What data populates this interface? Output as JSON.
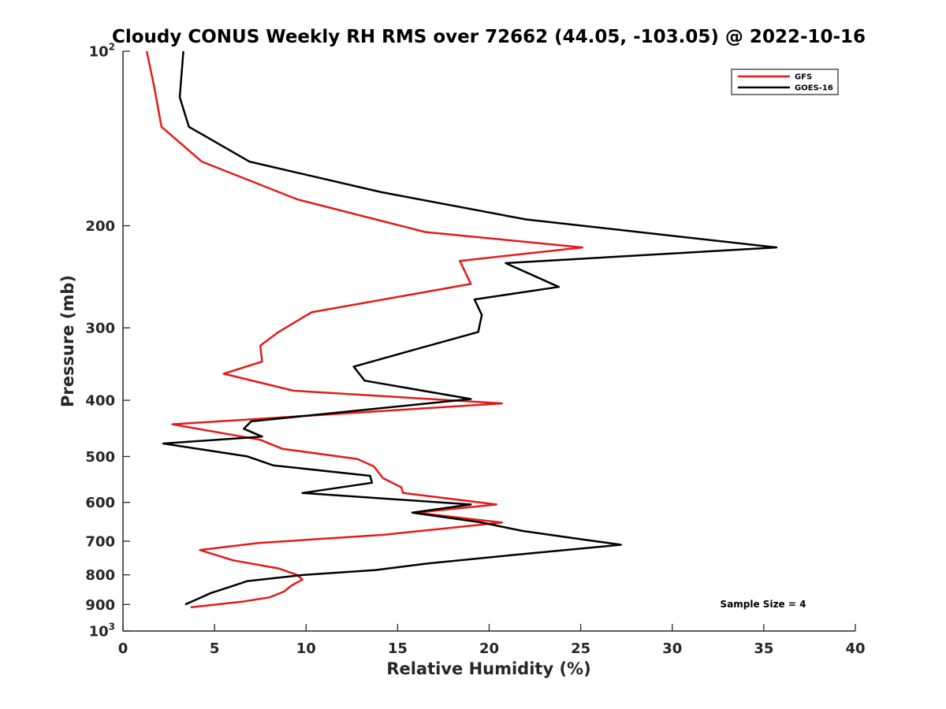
{
  "chart_data": {
    "type": "line",
    "title": "Cloudy CONUS Weekly RH RMS over 72662 (44.05, -103.05) @ 2022-10-16",
    "xlabel": "Relative Humidity (%)",
    "ylabel": "Pressure (mb)",
    "xlim": [
      0,
      40
    ],
    "ylim": [
      100,
      1000
    ],
    "y_scale": "log",
    "y_reversed": true,
    "x_ticks": [
      0,
      5,
      10,
      15,
      20,
      25,
      30,
      35,
      40
    ],
    "y_ticks": [
      {
        "value": 100,
        "base": "10",
        "exp": "2"
      },
      {
        "value": 200,
        "label": "200"
      },
      {
        "value": 300,
        "label": "300"
      },
      {
        "value": 400,
        "label": "400"
      },
      {
        "value": 500,
        "label": "500"
      },
      {
        "value": 600,
        "label": "600"
      },
      {
        "value": 700,
        "label": "700"
      },
      {
        "value": 800,
        "label": "800"
      },
      {
        "value": 900,
        "label": "900"
      },
      {
        "value": 1000,
        "base": "10",
        "exp": "3"
      }
    ],
    "grid": false,
    "legend_position": "top-right",
    "annotation": "Sample Size = 4",
    "series": [
      {
        "name": "GFS",
        "color": "#e41a1a",
        "points": [
          [
            1.3,
            100
          ],
          [
            1.7,
            115
          ],
          [
            2.1,
            135
          ],
          [
            4.3,
            155
          ],
          [
            9.5,
            180
          ],
          [
            16.5,
            205
          ],
          [
            25.1,
            218
          ],
          [
            18.4,
            230
          ],
          [
            19.0,
            252
          ],
          [
            10.3,
            282
          ],
          [
            8.5,
            305
          ],
          [
            7.5,
            322
          ],
          [
            7.6,
            343
          ],
          [
            5.5,
            360
          ],
          [
            9.3,
            385
          ],
          [
            20.7,
            405
          ],
          [
            2.7,
            440
          ],
          [
            7.5,
            468
          ],
          [
            8.7,
            485
          ],
          [
            12.8,
            505
          ],
          [
            13.7,
            520
          ],
          [
            14.2,
            545
          ],
          [
            15.2,
            565
          ],
          [
            15.3,
            578
          ],
          [
            20.4,
            605
          ],
          [
            16.0,
            625
          ],
          [
            20.7,
            650
          ],
          [
            14.3,
            682
          ],
          [
            7.4,
            705
          ],
          [
            4.2,
            725
          ],
          [
            6.0,
            755
          ],
          [
            8.5,
            780
          ],
          [
            9.5,
            800
          ],
          [
            9.8,
            815
          ],
          [
            9.2,
            835
          ],
          [
            8.8,
            855
          ],
          [
            8.0,
            875
          ],
          [
            6.5,
            890
          ],
          [
            3.7,
            910
          ]
        ]
      },
      {
        "name": "GOES-16",
        "color": "#000000",
        "points": [
          [
            3.3,
            100
          ],
          [
            3.1,
            120
          ],
          [
            3.6,
            135
          ],
          [
            6.9,
            155
          ],
          [
            14.1,
            175
          ],
          [
            22.0,
            195
          ],
          [
            35.7,
            218
          ],
          [
            20.9,
            232
          ],
          [
            23.8,
            255
          ],
          [
            19.2,
            268
          ],
          [
            19.6,
            285
          ],
          [
            19.4,
            305
          ],
          [
            15.5,
            330
          ],
          [
            12.6,
            350
          ],
          [
            13.2,
            370
          ],
          [
            19.0,
            398
          ],
          [
            7.0,
            435
          ],
          [
            6.6,
            448
          ],
          [
            7.6,
            462
          ],
          [
            2.2,
            475
          ],
          [
            6.8,
            500
          ],
          [
            8.2,
            518
          ],
          [
            13.5,
            540
          ],
          [
            13.6,
            555
          ],
          [
            9.8,
            578
          ],
          [
            19.0,
            605
          ],
          [
            15.8,
            625
          ],
          [
            19.6,
            650
          ],
          [
            21.8,
            672
          ],
          [
            25.1,
            695
          ],
          [
            27.2,
            710
          ],
          [
            21.2,
            740
          ],
          [
            16.6,
            765
          ],
          [
            13.8,
            785
          ],
          [
            9.9,
            800
          ],
          [
            6.8,
            820
          ],
          [
            5.8,
            840
          ],
          [
            4.8,
            860
          ],
          [
            4.1,
            880
          ],
          [
            3.4,
            900
          ]
        ]
      }
    ]
  }
}
